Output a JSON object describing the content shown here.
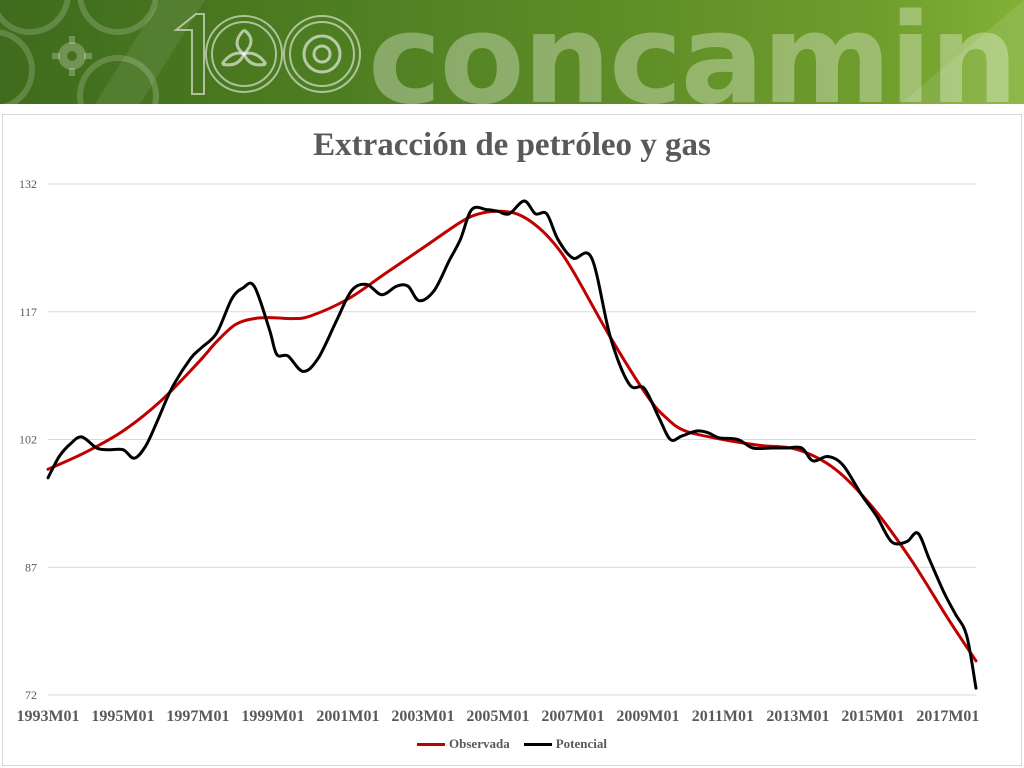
{
  "banner": {
    "text": "concamin",
    "logo_number": "100"
  },
  "colors": {
    "banner_dark": "#3f6b1c",
    "banner_light": "#82b136",
    "observada": "#c00000",
    "potencial": "#000000",
    "grid": "#d9d9d9",
    "text": "#595959"
  },
  "chart_data": {
    "type": "line",
    "title": "Extracción de petróleo y gas",
    "xlabel": "",
    "ylabel": "",
    "ylim": [
      72,
      132
    ],
    "y_ticks": [
      "132",
      "117",
      "102",
      "87",
      "72"
    ],
    "x_ticks": [
      "1993M01",
      "1995M01",
      "1997M01",
      "1999M01",
      "2001M01",
      "2003M01",
      "2005M01",
      "2007M01",
      "2009M01",
      "2011M01",
      "2013M01",
      "2015M01",
      "2017M01"
    ],
    "x_range": [
      1993.0,
      2017.75
    ],
    "grid": true,
    "legend_position": "bottom",
    "series": [
      {
        "name": "Observada",
        "color": "#c00000",
        "x": [
          1993.0,
          1994.0,
          1995.0,
          1996.0,
          1997.0,
          1997.5,
          1998.0,
          1998.5,
          1999.0,
          1999.5,
          2000.0,
          2001.0,
          2002.0,
          2003.0,
          2004.0,
          2004.5,
          2005.0,
          2005.5,
          2006.0,
          2006.5,
          2007.0,
          2008.0,
          2009.0,
          2009.5,
          2010.0,
          2011.0,
          2012.0,
          2013.0,
          2014.0,
          2015.0,
          2016.0,
          2017.0,
          2017.75
        ],
        "y": [
          98.5,
          100.5,
          103.0,
          106.5,
          111.0,
          113.5,
          115.5,
          116.2,
          116.3,
          116.2,
          116.5,
          118.5,
          121.5,
          124.5,
          127.5,
          128.5,
          128.8,
          128.5,
          127.2,
          125.0,
          121.8,
          114.0,
          107.0,
          104.5,
          103.0,
          102.0,
          101.3,
          100.8,
          98.5,
          94.0,
          88.0,
          81.0,
          76.0
        ]
      },
      {
        "name": "Potencial",
        "color": "#000000",
        "x": [
          1993.0,
          1993.3,
          1993.6,
          1993.9,
          1994.3,
          1994.6,
          1995.0,
          1995.3,
          1995.6,
          1995.9,
          1996.3,
          1996.8,
          1997.1,
          1997.5,
          1997.9,
          1998.2,
          1998.5,
          1998.9,
          1999.1,
          1999.4,
          1999.8,
          2000.2,
          2000.7,
          2001.1,
          2001.5,
          2001.9,
          2002.3,
          2002.6,
          2002.9,
          2003.3,
          2003.7,
          2004.0,
          2004.3,
          2004.7,
          2005.0,
          2005.3,
          2005.7,
          2006.0,
          2006.3,
          2006.6,
          2007.0,
          2007.5,
          2008.0,
          2008.5,
          2008.9,
          2009.3,
          2009.6,
          2009.9,
          2010.3,
          2010.6,
          2010.9,
          2011.4,
          2011.8,
          2012.3,
          2012.7,
          2013.1,
          2013.4,
          2013.8,
          2014.2,
          2014.7,
          2015.1,
          2015.5,
          2015.9,
          2016.2,
          2016.5,
          2016.9,
          2017.2,
          2017.5,
          2017.75
        ],
        "y": [
          97.5,
          100.0,
          101.5,
          102.3,
          101.0,
          100.8,
          100.8,
          99.8,
          101.2,
          104.0,
          108.0,
          111.5,
          112.8,
          114.5,
          118.5,
          119.8,
          120.0,
          115.0,
          112.0,
          111.8,
          110.0,
          111.5,
          116.0,
          119.5,
          120.2,
          119.0,
          120.0,
          120.0,
          118.3,
          119.5,
          123.0,
          125.5,
          129.0,
          129.0,
          128.8,
          128.5,
          130.0,
          128.5,
          128.5,
          125.5,
          123.3,
          123.3,
          114.0,
          108.5,
          108.0,
          104.5,
          102.0,
          102.4,
          103.0,
          102.8,
          102.2,
          102.0,
          101.0,
          101.0,
          101.0,
          101.0,
          99.5,
          100.0,
          99.0,
          95.5,
          93.0,
          90.0,
          90.0,
          91.0,
          88.0,
          84.0,
          81.5,
          79.0,
          72.8
        ]
      }
    ]
  }
}
